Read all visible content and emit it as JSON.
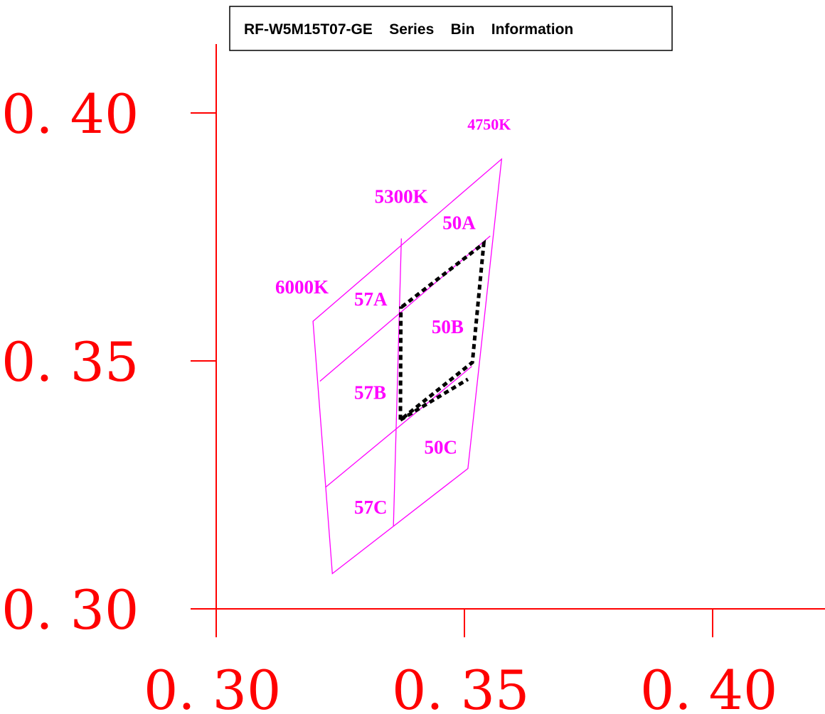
{
  "chart_data": {
    "type": "scatter",
    "title": "RF-W5M15T07-GE    Series    Bin    Information",
    "xlabel": "",
    "ylabel": "",
    "xlim": [
      0.3,
      0.41
    ],
    "ylim": [
      0.3,
      0.41
    ],
    "x_ticks": [
      {
        "value": 0.3,
        "label": "0. 30"
      },
      {
        "value": 0.35,
        "label": "0. 35"
      },
      {
        "value": 0.4,
        "label": "0. 40"
      }
    ],
    "y_ticks": [
      {
        "value": 0.3,
        "label": "0. 30"
      },
      {
        "value": 0.35,
        "label": "0. 35"
      },
      {
        "value": 0.4,
        "label": "0. 40"
      }
    ],
    "grid": false,
    "colors": {
      "axis": "#ff0000",
      "bins": "#ff00ff",
      "selection": "#000000"
    },
    "bins_outline": [
      [
        0.3195,
        0.358
      ],
      [
        0.3575,
        0.3907
      ],
      [
        0.3507,
        0.3283
      ],
      [
        0.3234,
        0.3071
      ]
    ],
    "bins_lines": [
      [
        [
          0.3373,
          0.3747
        ],
        [
          0.3357,
          0.3167
        ]
      ],
      [
        [
          0.3209,
          0.3459
        ],
        [
          0.3552,
          0.3752
        ]
      ],
      [
        [
          0.322,
          0.3245
        ],
        [
          0.3515,
          0.3489
        ]
      ]
    ],
    "selection_polygon": [
      [
        0.3374,
        0.3609
      ],
      [
        0.3539,
        0.3737
      ],
      [
        0.3516,
        0.3497
      ],
      [
        0.3371,
        0.3381
      ],
      [
        0.3372,
        0.361
      ]
    ],
    "selection_segment": [
      [
        0.3371,
        0.3381
      ],
      [
        0.3507,
        0.3463
      ]
    ],
    "region_labels": [
      {
        "text": "50A",
        "x": 0.3456,
        "y": 0.3766
      },
      {
        "text": "57A",
        "x": 0.3278,
        "y": 0.3612
      },
      {
        "text": "50B",
        "x": 0.3434,
        "y": 0.3556
      },
      {
        "text": "57B",
        "x": 0.3278,
        "y": 0.3423
      },
      {
        "text": "50C",
        "x": 0.3419,
        "y": 0.3313
      },
      {
        "text": "57C",
        "x": 0.3278,
        "y": 0.3192
      }
    ],
    "cct_labels": [
      {
        "text": "4750K",
        "x": 0.3506,
        "y": 0.3966,
        "small": true
      },
      {
        "text": "5300K",
        "x": 0.3319,
        "y": 0.3819
      },
      {
        "text": "6000K",
        "x": 0.3119,
        "y": 0.3636
      }
    ]
  }
}
